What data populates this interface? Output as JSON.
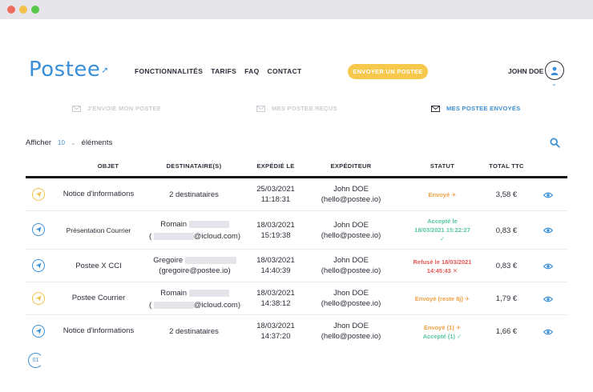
{
  "brand": {
    "logo": "Postee",
    "accent": "#3a8fd6",
    "cta_color": "#f6c84c"
  },
  "nav": [
    "FONCTIONNALITÉS",
    "TARIFS",
    "FAQ",
    "CONTACT"
  ],
  "cta_label": "ENVOYER UN POSTEE",
  "user": {
    "name": "JOHN DOE",
    "icon": "user-icon"
  },
  "tabs": [
    {
      "label": "J'ENVOIE MON POSTEE",
      "icon": "mail-icon",
      "active": false
    },
    {
      "label": "MES POSTEE REÇUS",
      "icon": "mail-icon",
      "active": false
    },
    {
      "label": "MES POSTEE ENVOYÉS",
      "icon": "mail-icon",
      "active": true
    }
  ],
  "show": {
    "prefix": "Afficher",
    "count": "10",
    "suffix": "éléments"
  },
  "columns": [
    "OBJET",
    "DESTINATAIRE(S)",
    "EXPÉDIÉ LE",
    "EXPÉDITEUR",
    "STATUT",
    "TOTAL TTC"
  ],
  "rows": [
    {
      "icon_color": "yellow",
      "objet": "Notice d'informations",
      "dest_line1": "2 destinataires",
      "dest_line2": "",
      "date": "25/03/2021",
      "time": "11:18:31",
      "sender_name": "John DOE",
      "sender_email": "(hello@postee.io)",
      "status1": "Envoyé ✈",
      "status1_color": "orange",
      "status2": "",
      "status2_color": "",
      "total": "3,58 €"
    },
    {
      "icon_color": "blue",
      "objet": "Présentation Courrier",
      "dest_line1": "Romain",
      "dest_line2": "@icloud.com)",
      "date": "18/03/2021",
      "time": "15:19:38",
      "sender_name": "John DOE",
      "sender_email": "(hello@postee.io)",
      "status1": "Accepté le",
      "status1_color": "green",
      "status2": "18/03/2021 15:22:27",
      "status2_color": "green",
      "status3": "✓",
      "total": "0,83 €"
    },
    {
      "icon_color": "blue",
      "objet": "Postee X CCI",
      "dest_line1": "Gregoire",
      "dest_line2": "(gregoire@postee.io)",
      "date": "18/03/2021",
      "time": "14:40:39",
      "sender_name": "John DOE",
      "sender_email": "(hello@postee.io)",
      "status1": "Refusé le 18/03/2021",
      "status1_color": "red",
      "status2": "14:45:43 ✕",
      "status2_color": "red",
      "total": "0,83 €"
    },
    {
      "icon_color": "yellow",
      "objet": "Postee Courrier",
      "dest_line1": "Romain",
      "dest_line2": "@icloud.com)",
      "date": "18/03/2021",
      "time": "14:38:12",
      "sender_name": "Jhon DOE",
      "sender_email": "(hello@postee.io)",
      "status1": "Envoyé (reste 8j) ✈",
      "status1_color": "orange",
      "status2": "",
      "status2_color": "",
      "total": "1,79 €"
    },
    {
      "icon_color": "blue",
      "objet": "Notice d'informations",
      "dest_line1": "2 destinataires",
      "dest_line2": "",
      "date": "18/03/2021",
      "time": "14:37:20",
      "sender_name": "Jhon DOE",
      "sender_email": "(hello@postee.io)",
      "status1": "Envoyé (1) ✈",
      "status1_color": "orange",
      "status2": "Accepté (1) ✓",
      "status2_color": "green",
      "total": "1,66 €"
    }
  ],
  "pager": "01"
}
